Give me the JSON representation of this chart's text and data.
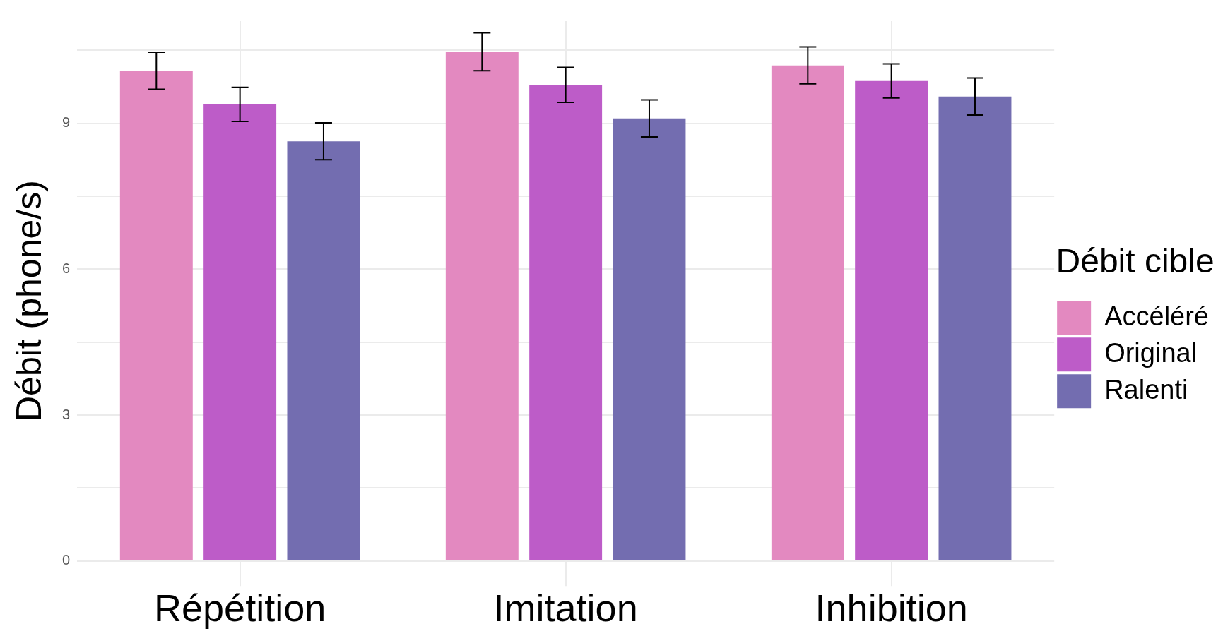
{
  "chart_data": {
    "type": "bar",
    "ylabel": "Débit (phone/s)",
    "legend_title": "Débit cible",
    "categories": [
      "Répétition",
      "Imitation",
      "Inhibition"
    ],
    "series": [
      {
        "name": "Accéléré",
        "color": "#e389c0",
        "values": [
          10.08,
          10.47,
          10.19
        ],
        "errors": [
          0.38,
          0.39,
          0.38
        ]
      },
      {
        "name": "Original",
        "color": "#bd5cc8",
        "values": [
          9.39,
          9.79,
          9.87
        ],
        "errors": [
          0.35,
          0.36,
          0.35
        ]
      },
      {
        "name": "Ralenti",
        "color": "#736db0",
        "values": [
          8.63,
          9.1,
          9.55
        ],
        "errors": [
          0.38,
          0.38,
          0.38
        ]
      }
    ],
    "ylim": [
      -0.4,
      11.1
    ],
    "yticks": [
      0,
      {
        "value": 1.5,
        "label": null
      },
      3,
      {
        "value": 4.5,
        "label": null
      },
      6,
      {
        "value": 7.5,
        "label": null
      },
      9,
      {
        "value": 10.5,
        "label": null
      }
    ],
    "grid": true,
    "legend": "right"
  }
}
